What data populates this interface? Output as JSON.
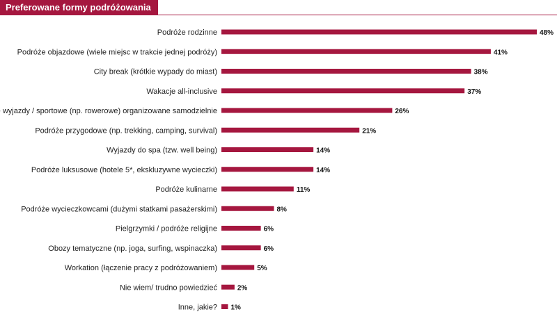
{
  "title": "Preferowane formy podróżowania",
  "colors": {
    "accent": "#a5173f",
    "text": "#222222"
  },
  "chart_data": {
    "type": "bar",
    "orientation": "horizontal",
    "title": "Preferowane formy podróżowania",
    "xlabel": "",
    "ylabel": "",
    "xlim": [
      0,
      48
    ],
    "grid": false,
    "legend": "none",
    "value_suffix": "%",
    "categories": [
      "Podróże rodzinne",
      "Podróże objazdowe (wiele miejsc w trakcie jednej podróży)",
      "City break (krótkie wypady do miast)",
      "Wakacje all-inclusive",
      "Aktywne wyjazdy / sportowe (np. rowerowe) organizowane samodzielnie",
      "Podróże przygodowe (np. trekking, camping, survival)",
      "Wyjazdy do spa (tzw. well being)",
      "Podróże luksusowe (hotele 5*, ekskluzywne wycieczki)",
      "Podróże kulinarne",
      "Podróże wycieczkowcami (dużymi statkami pasażerskimi)",
      "Pielgrzymki / podróże religijne",
      "Obozy tematyczne (np. joga, surfing, wspinaczka)",
      "Workation (łączenie pracy z podróżowaniem)",
      "Nie wiem/ trudno powiedzieć",
      "Inne, jakie?"
    ],
    "values": [
      48,
      41,
      38,
      37,
      26,
      21,
      14,
      14,
      11,
      8,
      6,
      6,
      5,
      2,
      1
    ]
  }
}
